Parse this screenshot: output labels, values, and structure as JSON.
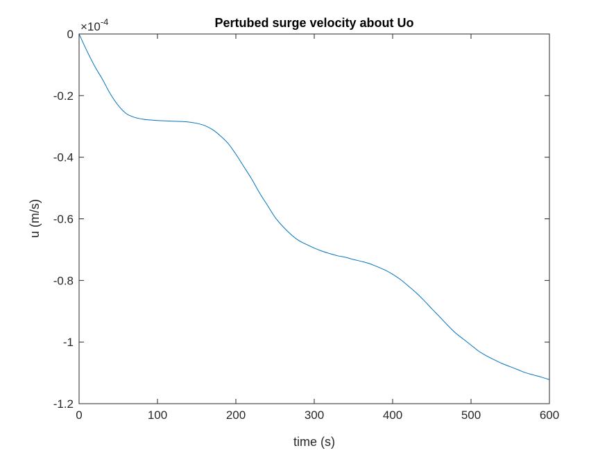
{
  "chart_data": {
    "type": "line",
    "title": "Pertubed surge velocity about Uo",
    "xlabel": "time (s)",
    "ylabel": "u (m/s)",
    "exponent_label": "×10",
    "exponent_power": "-4",
    "xlim": [
      0,
      600
    ],
    "ylim": [
      -1.2,
      0
    ],
    "xticks": [
      0,
      100,
      200,
      300,
      400,
      500,
      600
    ],
    "xtick_labels": [
      "0",
      "100",
      "200",
      "300",
      "400",
      "500",
      "600"
    ],
    "yticks": [
      -1.2,
      -1,
      -0.8,
      -0.6,
      -0.4,
      -0.2,
      0
    ],
    "ytick_labels": [
      "-1.2",
      "-1",
      "-0.8",
      "-0.6",
      "-0.4",
      "-0.2",
      "0"
    ],
    "grid": false,
    "colors": {
      "line": "#0072BD",
      "axes": "#262626"
    },
    "series": [
      {
        "x": [
          0,
          10,
          20,
          30,
          40,
          50,
          60,
          70,
          80,
          90,
          100,
          110,
          120,
          130,
          140,
          150,
          160,
          170,
          180,
          190,
          200,
          210,
          220,
          230,
          240,
          250,
          260,
          270,
          280,
          290,
          300,
          310,
          320,
          330,
          340,
          350,
          360,
          370,
          380,
          390,
          400,
          410,
          420,
          430,
          440,
          450,
          460,
          470,
          480,
          490,
          500,
          510,
          520,
          530,
          540,
          550,
          560,
          570,
          580,
          590,
          600
        ],
        "y": [
          0,
          -0.055,
          -0.105,
          -0.148,
          -0.195,
          -0.232,
          -0.258,
          -0.27,
          -0.276,
          -0.279,
          -0.281,
          -0.282,
          -0.283,
          -0.284,
          -0.286,
          -0.29,
          -0.297,
          -0.31,
          -0.33,
          -0.355,
          -0.39,
          -0.43,
          -0.47,
          -0.515,
          -0.555,
          -0.595,
          -0.625,
          -0.65,
          -0.67,
          -0.683,
          -0.695,
          -0.705,
          -0.713,
          -0.72,
          -0.725,
          -0.732,
          -0.738,
          -0.745,
          -0.755,
          -0.766,
          -0.78,
          -0.797,
          -0.818,
          -0.84,
          -0.865,
          -0.892,
          -0.918,
          -0.945,
          -0.97,
          -0.99,
          -1.01,
          -1.03,
          -1.045,
          -1.058,
          -1.07,
          -1.08,
          -1.09,
          -1.1,
          -1.107,
          -1.114,
          -1.122
        ]
      }
    ]
  }
}
